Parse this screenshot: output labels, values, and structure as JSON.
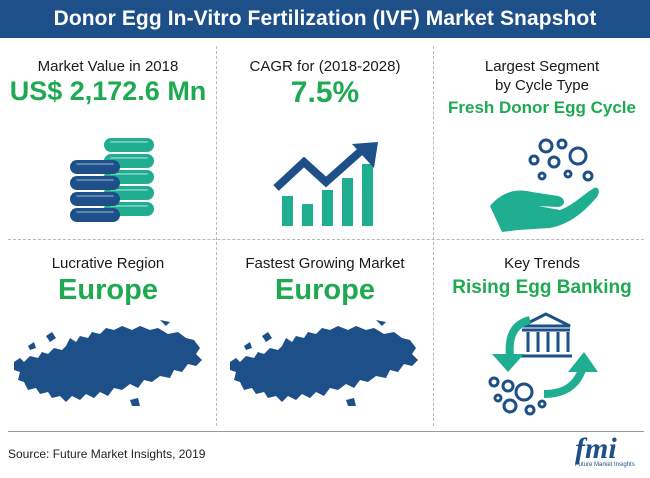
{
  "header": {
    "title": "Donor Egg In-Vitro Fertilization (IVF) Market Snapshot"
  },
  "cells": {
    "market_value": {
      "label": "Market Value in 2018",
      "value": "US$ 2,172.6 Mn",
      "icon": "coin-stacks-icon"
    },
    "cagr": {
      "label": "CAGR for (2018-2028)",
      "value": "7.5%",
      "icon": "growth-chart-icon"
    },
    "largest_segment": {
      "label_line1": "Largest Segment",
      "label_line2": "by Cycle Type",
      "value": "Fresh Donor Egg Cycle",
      "icon": "hand-eggs-icon"
    },
    "lucrative_region": {
      "label": "Lucrative Region",
      "value": "Europe",
      "icon": "europe-map-icon"
    },
    "fastest_growing": {
      "label": "Fastest Growing Market",
      "value": "Europe",
      "icon": "europe-map-icon"
    },
    "key_trends": {
      "label": "Key Trends",
      "value": "Rising Egg Banking",
      "icon": "egg-bank-icon"
    }
  },
  "footer": {
    "source": "Source: Future Market Insights, 2019",
    "logo": "fmi",
    "logo_sub": "Future Market Insights"
  },
  "colors": {
    "header": "#1d4f88",
    "accent_green": "#1faa52",
    "icon_blue": "#1d4f88",
    "icon_teal": "#1fae8f"
  }
}
